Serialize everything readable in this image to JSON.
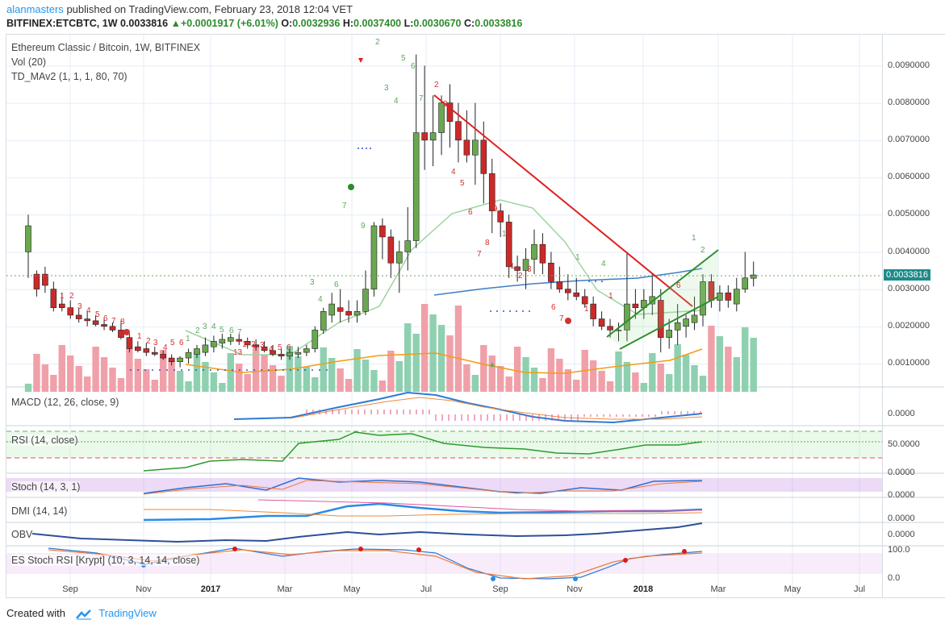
{
  "header": {
    "user": "alanmasters",
    "published_text": "published on TradingView.com, February 23, 2018 12:04 VET",
    "ticker": "BITFINEX:ETCBTC, 1W",
    "last": "0.0033816",
    "change": "+0.0001917 (+6.01%)",
    "o_label": "O:",
    "o": "0.0032936",
    "h_label": "H:",
    "h": "0.0037400",
    "l_label": "L:",
    "l": "0.0030670",
    "c_label": "C:",
    "c": "0.0033816"
  },
  "studies": {
    "title": "Ethereum Classic / Bitcoin, 1W, BITFINEX",
    "vol": "Vol (20)",
    "td": "TD_MAv2 (1, 1, 1, 80, 70)",
    "macd": "MACD (12, 26, close, 9)",
    "rsi": "RSI (14, close)",
    "stoch": "Stoch (14, 3, 1)",
    "dmi": "DMI (14, 14)",
    "obv": "OBV",
    "esrsi": "ES Stoch RSI [Krypt] (10, 3, 14, 14, close)"
  },
  "price_axis": {
    "labels": [
      "0.0090000",
      "0.0080000",
      "0.0070000",
      "0.0060000",
      "0.0050000",
      "0.0040000",
      "0.0030000",
      "0.0020000",
      "0.0010000"
    ],
    "current": "0.0033816"
  },
  "pane_axis": {
    "macd": "0.0000",
    "rsi": "50.0000",
    "rsi_low": "0.0000",
    "stoch": "0.0000",
    "dmi": "0.0000",
    "obv": "0.0000",
    "esrsi_top": "100.0",
    "esrsi_bottom": "0.0"
  },
  "time_axis": [
    {
      "label": "Sep",
      "bold": false
    },
    {
      "label": "Nov",
      "bold": false
    },
    {
      "label": "2017",
      "bold": true
    },
    {
      "label": "Mar",
      "bold": false
    },
    {
      "label": "May",
      "bold": false
    },
    {
      "label": "Jul",
      "bold": false
    },
    {
      "label": "Sep",
      "bold": false
    },
    {
      "label": "Nov",
      "bold": false
    },
    {
      "label": "2018",
      "bold": true
    },
    {
      "label": "Mar",
      "bold": false
    },
    {
      "label": "May",
      "bold": false
    },
    {
      "label": "Jul",
      "bold": false
    }
  ],
  "footer": {
    "created_with": "Created with",
    "brand": "TradingView"
  },
  "colors": {
    "up": "#6aa84f",
    "down": "#cc2929",
    "vol_up": "#8fd0b0",
    "vol_down": "#f0a0a8",
    "ma_blue": "#3d7fc4",
    "ma_orange": "#f39c12",
    "ma_green": "#9ed39e",
    "trend_red": "#e02020",
    "channel_green": "#2f8f2f"
  },
  "chart_data": {
    "type": "candlestick",
    "symbol": "ETCBTC",
    "interval": "1W",
    "ylim": [
      0.0,
      0.0096
    ],
    "candles": [
      {
        "o": 0.004,
        "h": 0.005,
        "l": 0.0033,
        "c": 0.0047
      },
      {
        "o": 0.0034,
        "h": 0.0035,
        "l": 0.0028,
        "c": 0.003
      },
      {
        "o": 0.0034,
        "h": 0.0036,
        "l": 0.0029,
        "c": 0.0031
      },
      {
        "o": 0.003,
        "h": 0.0032,
        "l": 0.0024,
        "c": 0.0025
      },
      {
        "o": 0.0026,
        "h": 0.0029,
        "l": 0.0024,
        "c": 0.0025
      },
      {
        "o": 0.0025,
        "h": 0.0027,
        "l": 0.0022,
        "c": 0.0023
      },
      {
        "o": 0.0023,
        "h": 0.0025,
        "l": 0.0021,
        "c": 0.0022
      },
      {
        "o": 0.0022,
        "h": 0.0024,
        "l": 0.002,
        "c": 0.00215
      },
      {
        "o": 0.00215,
        "h": 0.0023,
        "l": 0.002,
        "c": 0.00205
      },
      {
        "o": 0.00205,
        "h": 0.0022,
        "l": 0.0019,
        "c": 0.002
      },
      {
        "o": 0.002,
        "h": 0.0021,
        "l": 0.00185,
        "c": 0.0019
      },
      {
        "o": 0.0019,
        "h": 0.00215,
        "l": 0.00165,
        "c": 0.0017
      },
      {
        "o": 0.0017,
        "h": 0.0018,
        "l": 0.0013,
        "c": 0.0014
      },
      {
        "o": 0.00145,
        "h": 0.0016,
        "l": 0.0013,
        "c": 0.00135
      },
      {
        "o": 0.0014,
        "h": 0.00155,
        "l": 0.0012,
        "c": 0.0013
      },
      {
        "o": 0.0013,
        "h": 0.00145,
        "l": 0.0012,
        "c": 0.00125
      },
      {
        "o": 0.00125,
        "h": 0.00135,
        "l": 0.0011,
        "c": 0.00115
      },
      {
        "o": 0.00115,
        "h": 0.00125,
        "l": 0.00095,
        "c": 0.00105
      },
      {
        "o": 0.00105,
        "h": 0.0012,
        "l": 0.0009,
        "c": 0.00115
      },
      {
        "o": 0.00115,
        "h": 0.0014,
        "l": 0.001,
        "c": 0.0013
      },
      {
        "o": 0.00125,
        "h": 0.0015,
        "l": 0.00115,
        "c": 0.0014
      },
      {
        "o": 0.0013,
        "h": 0.0017,
        "l": 0.0012,
        "c": 0.0015
      },
      {
        "o": 0.00145,
        "h": 0.00175,
        "l": 0.0013,
        "c": 0.0016
      },
      {
        "o": 0.00155,
        "h": 0.0018,
        "l": 0.0014,
        "c": 0.00165
      },
      {
        "o": 0.0016,
        "h": 0.0018,
        "l": 0.0015,
        "c": 0.0017
      },
      {
        "o": 0.00165,
        "h": 0.0018,
        "l": 0.0015,
        "c": 0.0016
      },
      {
        "o": 0.0016,
        "h": 0.0017,
        "l": 0.0014,
        "c": 0.0015
      },
      {
        "o": 0.0015,
        "h": 0.00165,
        "l": 0.00135,
        "c": 0.00145
      },
      {
        "o": 0.00145,
        "h": 0.0016,
        "l": 0.0013,
        "c": 0.00135
      },
      {
        "o": 0.00135,
        "h": 0.0015,
        "l": 0.0012,
        "c": 0.00125
      },
      {
        "o": 0.00125,
        "h": 0.0014,
        "l": 0.0011,
        "c": 0.0012
      },
      {
        "o": 0.0012,
        "h": 0.0014,
        "l": 0.0011,
        "c": 0.0013
      },
      {
        "o": 0.00125,
        "h": 0.00145,
        "l": 0.00115,
        "c": 0.0013
      },
      {
        "o": 0.0013,
        "h": 0.0015,
        "l": 0.0012,
        "c": 0.0014
      },
      {
        "o": 0.0014,
        "h": 0.002,
        "l": 0.0013,
        "c": 0.0019
      },
      {
        "o": 0.0019,
        "h": 0.0025,
        "l": 0.0018,
        "c": 0.0024
      },
      {
        "o": 0.0023,
        "h": 0.0029,
        "l": 0.0021,
        "c": 0.0026
      },
      {
        "o": 0.0025,
        "h": 0.003,
        "l": 0.0021,
        "c": 0.0024
      },
      {
        "o": 0.0024,
        "h": 0.0027,
        "l": 0.0021,
        "c": 0.0023
      },
      {
        "o": 0.0023,
        "h": 0.0027,
        "l": 0.0021,
        "c": 0.0024
      },
      {
        "o": 0.0024,
        "h": 0.0035,
        "l": 0.0023,
        "c": 0.003
      },
      {
        "o": 0.003,
        "h": 0.0048,
        "l": 0.0028,
        "c": 0.0047
      },
      {
        "o": 0.0047,
        "h": 0.0049,
        "l": 0.0038,
        "c": 0.0044
      },
      {
        "o": 0.0044,
        "h": 0.0046,
        "l": 0.0033,
        "c": 0.0037
      },
      {
        "o": 0.0037,
        "h": 0.0043,
        "l": 0.0029,
        "c": 0.004
      },
      {
        "o": 0.004,
        "h": 0.0052,
        "l": 0.0035,
        "c": 0.0043
      },
      {
        "o": 0.0043,
        "h": 0.0093,
        "l": 0.0041,
        "c": 0.0072
      },
      {
        "o": 0.0072,
        "h": 0.009,
        "l": 0.0062,
        "c": 0.007
      },
      {
        "o": 0.007,
        "h": 0.0082,
        "l": 0.0063,
        "c": 0.0072
      },
      {
        "o": 0.0072,
        "h": 0.0082,
        "l": 0.0066,
        "c": 0.008
      },
      {
        "o": 0.008,
        "h": 0.0085,
        "l": 0.0068,
        "c": 0.0075
      },
      {
        "o": 0.0075,
        "h": 0.008,
        "l": 0.0064,
        "c": 0.007
      },
      {
        "o": 0.007,
        "h": 0.0078,
        "l": 0.0064,
        "c": 0.0066
      },
      {
        "o": 0.0066,
        "h": 0.008,
        "l": 0.0058,
        "c": 0.007
      },
      {
        "o": 0.007,
        "h": 0.0075,
        "l": 0.0053,
        "c": 0.0061
      },
      {
        "o": 0.0061,
        "h": 0.0065,
        "l": 0.0045,
        "c": 0.0051
      },
      {
        "o": 0.0051,
        "h": 0.0053,
        "l": 0.0044,
        "c": 0.0048
      },
      {
        "o": 0.0048,
        "h": 0.005,
        "l": 0.0033,
        "c": 0.0036
      },
      {
        "o": 0.0036,
        "h": 0.0039,
        "l": 0.0032,
        "c": 0.0035
      },
      {
        "o": 0.0035,
        "h": 0.0041,
        "l": 0.003,
        "c": 0.0038
      },
      {
        "o": 0.0038,
        "h": 0.0046,
        "l": 0.0034,
        "c": 0.0042
      },
      {
        "o": 0.0042,
        "h": 0.0045,
        "l": 0.0034,
        "c": 0.0037
      },
      {
        "o": 0.0037,
        "h": 0.004,
        "l": 0.003,
        "c": 0.0032
      },
      {
        "o": 0.0032,
        "h": 0.0036,
        "l": 0.0029,
        "c": 0.003
      },
      {
        "o": 0.003,
        "h": 0.0034,
        "l": 0.0027,
        "c": 0.0029
      },
      {
        "o": 0.0029,
        "h": 0.0033,
        "l": 0.0027,
        "c": 0.0028
      },
      {
        "o": 0.0028,
        "h": 0.003,
        "l": 0.0025,
        "c": 0.0026
      },
      {
        "o": 0.0026,
        "h": 0.0028,
        "l": 0.002,
        "c": 0.0022
      },
      {
        "o": 0.0022,
        "h": 0.0024,
        "l": 0.0019,
        "c": 0.002
      },
      {
        "o": 0.002,
        "h": 0.0022,
        "l": 0.0017,
        "c": 0.0019
      },
      {
        "o": 0.0019,
        "h": 0.0021,
        "l": 0.0016,
        "c": 0.0019
      },
      {
        "o": 0.0019,
        "h": 0.004,
        "l": 0.0016,
        "c": 0.0026
      },
      {
        "o": 0.0026,
        "h": 0.003,
        "l": 0.0022,
        "c": 0.0025
      },
      {
        "o": 0.0025,
        "h": 0.003,
        "l": 0.0022,
        "c": 0.0027
      },
      {
        "o": 0.0026,
        "h": 0.0034,
        "l": 0.0023,
        "c": 0.0028
      },
      {
        "o": 0.0027,
        "h": 0.003,
        "l": 0.0013,
        "c": 0.0017
      },
      {
        "o": 0.0017,
        "h": 0.0022,
        "l": 0.0014,
        "c": 0.0019
      },
      {
        "o": 0.0019,
        "h": 0.0026,
        "l": 0.0015,
        "c": 0.0021
      },
      {
        "o": 0.002,
        "h": 0.0023,
        "l": 0.0017,
        "c": 0.0022
      },
      {
        "o": 0.0021,
        "h": 0.0028,
        "l": 0.0019,
        "c": 0.0023
      },
      {
        "o": 0.0023,
        "h": 0.0034,
        "l": 0.002,
        "c": 0.0032
      },
      {
        "o": 0.0032,
        "h": 0.0034,
        "l": 0.0025,
        "c": 0.0027
      },
      {
        "o": 0.0027,
        "h": 0.0031,
        "l": 0.0024,
        "c": 0.0029
      },
      {
        "o": 0.0029,
        "h": 0.0031,
        "l": 0.0025,
        "c": 0.0027
      },
      {
        "o": 0.0026,
        "h": 0.0033,
        "l": 0.0024,
        "c": 0.003
      },
      {
        "o": 0.003,
        "h": 0.004,
        "l": 0.0029,
        "c": 0.0033
      },
      {
        "o": 0.00329,
        "h": 0.00374,
        "l": 0.00307,
        "c": 0.00338
      }
    ],
    "current_price": 0.0033816
  }
}
